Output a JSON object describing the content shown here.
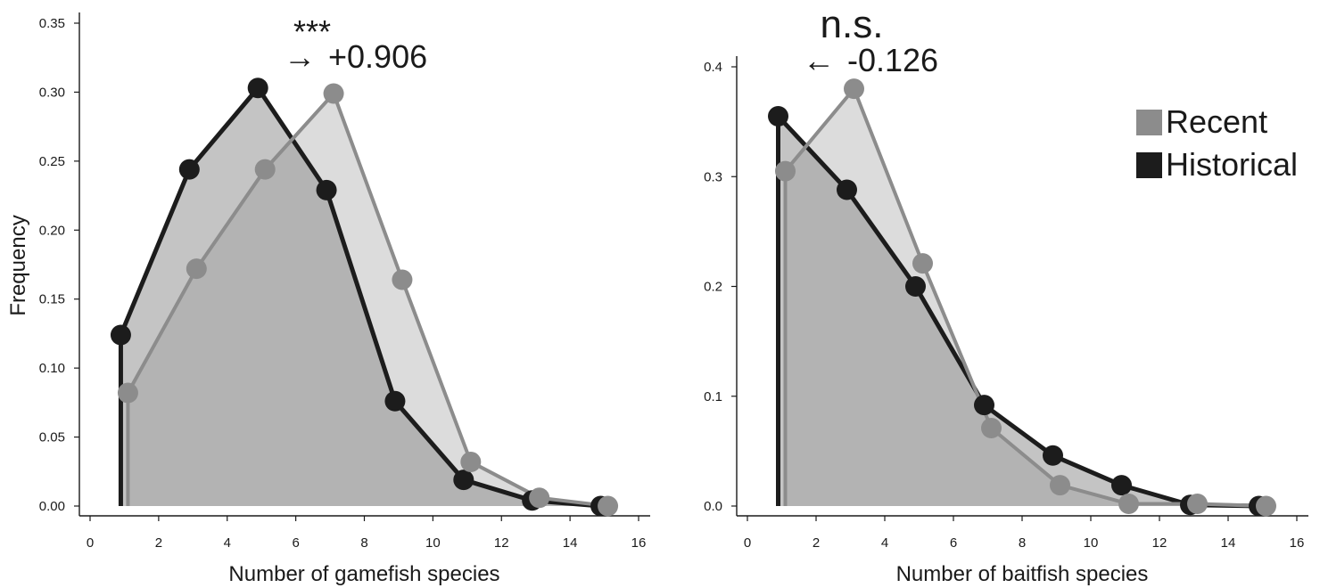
{
  "figure": {
    "ylabel": "Frequency",
    "legend": {
      "position": "top-right of right panel",
      "entries": [
        {
          "name": "Recent",
          "color": "#8c8c8c"
        },
        {
          "name": "Historical",
          "color": "#1c1c1c"
        }
      ]
    },
    "colors": {
      "recent_line": "#8c8c8c",
      "recent_fill": "#dcdcdc",
      "historical_line": "#1c1c1c",
      "historical_fill": "#b4b4b4"
    }
  },
  "chart_data": [
    {
      "type": "area",
      "xlabel": "Number of gamefish species",
      "ylabel": "Frequency",
      "xlim": [
        0,
        16
      ],
      "ylim": [
        0,
        0.35
      ],
      "xticks": [
        0,
        2,
        4,
        6,
        8,
        10,
        12,
        14,
        16
      ],
      "xtick_labels": [
        "0",
        "2",
        "4",
        "6",
        "8",
        "10",
        "12",
        "14",
        "16"
      ],
      "yticks": [
        0,
        0.05,
        0.1,
        0.15,
        0.2,
        0.25,
        0.3,
        0.35
      ],
      "ytick_labels": [
        "0.00",
        "0.05",
        "0.10",
        "0.15",
        "0.20",
        "0.25",
        "0.30",
        "0.35"
      ],
      "grid": false,
      "annotation": {
        "significance": "***",
        "arrow": "→",
        "shift": "+0.906"
      },
      "series": [
        {
          "name": "Historical",
          "x": [
            1,
            3,
            5,
            7,
            9,
            11,
            13,
            15
          ],
          "values": [
            0.124,
            0.244,
            0.303,
            0.229,
            0.076,
            0.019,
            0.004,
            0.0
          ]
        },
        {
          "name": "Recent",
          "x": [
            1,
            3,
            5,
            7,
            9,
            11,
            13,
            15
          ],
          "values": [
            0.082,
            0.172,
            0.244,
            0.299,
            0.164,
            0.032,
            0.006,
            0.0
          ]
        }
      ]
    },
    {
      "type": "area",
      "xlabel": "Number of baitfish species",
      "ylabel": "",
      "xlim": [
        0,
        16
      ],
      "ylim": [
        0,
        0.45
      ],
      "xticks": [
        0,
        2,
        4,
        6,
        8,
        10,
        12,
        14,
        16
      ],
      "xtick_labels": [
        "0",
        "2",
        "4",
        "6",
        "8",
        "10",
        "12",
        "14",
        "16"
      ],
      "yticks": [
        0,
        0.1,
        0.2,
        0.3,
        0.4
      ],
      "ytick_labels": [
        "0.0",
        "0.1",
        "0.2",
        "0.3",
        "0.4"
      ],
      "grid": false,
      "annotation": {
        "significance": "n.s.",
        "arrow": "←",
        "shift": "-0.126"
      },
      "series": [
        {
          "name": "Historical",
          "x": [
            1,
            3,
            5,
            7,
            9,
            11,
            13,
            15
          ],
          "values": [
            0.355,
            0.288,
            0.2,
            0.092,
            0.046,
            0.019,
            0.001,
            0.0
          ]
        },
        {
          "name": "Recent",
          "x": [
            1,
            3,
            5,
            7,
            9,
            11,
            13,
            15
          ],
          "values": [
            0.305,
            0.38,
            0.221,
            0.071,
            0.019,
            0.002,
            0.002,
            0.0
          ]
        }
      ]
    }
  ]
}
